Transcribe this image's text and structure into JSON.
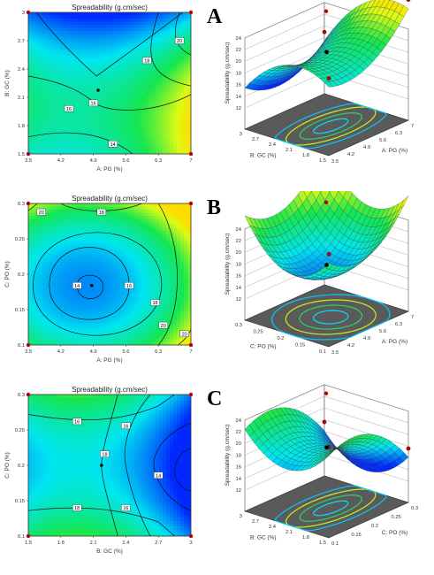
{
  "chart_data": [
    {
      "panel": "A",
      "type": "heatmap",
      "title": "Spreadability (g.cm/sec)",
      "xlabel": "A: PG (%)",
      "ylabel": "B: GC (%)",
      "x_ticks": [
        "3.5",
        "4.2",
        "4.9",
        "5.6",
        "6.3",
        "7"
      ],
      "y_ticks": [
        "1.5",
        "1.8",
        "2.1",
        "2.4",
        "2.7",
        "3"
      ],
      "xlim": [
        3.5,
        7
      ],
      "ylim": [
        1.5,
        3
      ],
      "contour_labels": [
        "14",
        "16",
        "16",
        "18",
        "20"
      ],
      "surface": {
        "zlabel": "Spreadability (g.cm/sec)",
        "z_ticks": [
          "12",
          "14",
          "16",
          "18",
          "20",
          "22",
          "24"
        ],
        "x_axis_label": "A: PG (%)",
        "x_ticks": [
          "3.5",
          "4.2",
          "4.9",
          "5.6",
          "6.3",
          "7"
        ],
        "y_axis_label": "B: GC (%)",
        "y_ticks": [
          "1.5",
          "1.8",
          "2.1",
          "2.4",
          "2.7",
          "3"
        ]
      }
    },
    {
      "panel": "B",
      "type": "heatmap",
      "title": "Spreadability (g.cm/sec)",
      "xlabel": "A: PG (%)",
      "ylabel": "C: PO (%)",
      "x_ticks": [
        "3.5",
        "4.2",
        "4.9",
        "5.6",
        "6.3",
        "7"
      ],
      "y_ticks": [
        "0.1",
        "0.15",
        "0.2",
        "0.25",
        "0.3"
      ],
      "xlim": [
        3.5,
        7
      ],
      "ylim": [
        0.1,
        0.3
      ],
      "contour_labels": [
        "14",
        "16",
        "18",
        "20",
        "18",
        "20",
        "20"
      ],
      "surface": {
        "zlabel": "Spreadability (g.cm/sec)",
        "z_ticks": [
          "12",
          "14",
          "16",
          "18",
          "20",
          "22",
          "24"
        ],
        "x_axis_label": "A: PG (%)",
        "x_ticks": [
          "3.5",
          "4.2",
          "4.9",
          "5.6",
          "6.3",
          "7"
        ],
        "y_axis_label": "C: PO (%)",
        "y_ticks": [
          "0.1",
          "0.15",
          "0.2",
          "0.25",
          "0.3"
        ]
      }
    },
    {
      "panel": "C",
      "type": "heatmap",
      "title": "Spreadability (g.cm/sec)",
      "xlabel": "B: GC (%)",
      "ylabel": "C: PO (%)",
      "x_ticks": [
        "1.5",
        "1.8",
        "2.1",
        "2.4",
        "2.7",
        "3"
      ],
      "y_ticks": [
        "0.1",
        "0.15",
        "0.2",
        "0.25",
        "0.3"
      ],
      "xlim": [
        1.5,
        3
      ],
      "ylim": [
        0.1,
        0.3
      ],
      "contour_labels": [
        "16",
        "18",
        "18",
        "16",
        "16",
        "14"
      ],
      "surface": {
        "zlabel": "Spreadability (g.cm/sec)",
        "z_ticks": [
          "12",
          "14",
          "16",
          "18",
          "20",
          "22",
          "24"
        ],
        "x_axis_label": "C: PO (%)",
        "x_ticks": [
          "0.1",
          "0.15",
          "0.2",
          "0.25",
          "0.3"
        ],
        "y_axis_label": "B: GC (%)",
        "y_ticks": [
          "1.5",
          "1.8",
          "2.1",
          "2.4",
          "2.7",
          "3"
        ]
      }
    }
  ],
  "colors": {
    "low": "#0030ff",
    "mid": "#00e0e8",
    "high": "#e8ff10",
    "max": "#ffe000",
    "design_point": "#c00000"
  }
}
